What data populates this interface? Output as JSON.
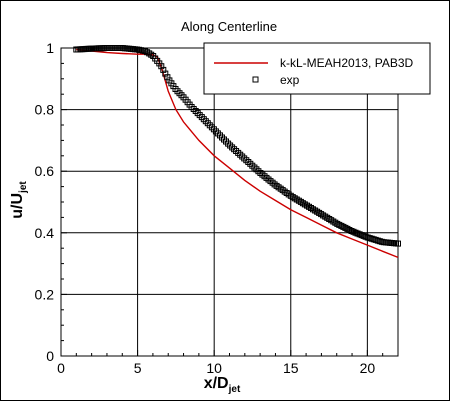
{
  "chart_data": {
    "type": "line",
    "title": "Along Centerline",
    "xlabel": {
      "main": "x/D",
      "sub": "jet"
    },
    "ylabel": {
      "main": "u/U",
      "sub": "jet"
    },
    "xlim": [
      0,
      22
    ],
    "ylim": [
      0,
      1
    ],
    "xticks": [
      0,
      5,
      10,
      15,
      20
    ],
    "yticks": [
      0,
      0.2,
      0.4,
      0.6,
      0.8,
      1
    ],
    "xtick_labels": [
      "0",
      "5",
      "10",
      "15",
      "20"
    ],
    "ytick_labels": [
      "0",
      "0.2",
      "0.4",
      "0.6",
      "0.8",
      "1"
    ],
    "grid": true,
    "legend_position": "top-right",
    "series": [
      {
        "name": "k-kL-MEAH2013, PAB3D",
        "style": "line",
        "color": "#cc0000",
        "x": [
          1,
          2,
          3,
          4,
          5,
          5.5,
          6,
          6.3,
          6.6,
          7,
          7.5,
          8,
          9,
          10,
          11,
          12,
          13,
          14,
          15,
          16,
          17,
          18,
          19,
          20,
          21,
          22
        ],
        "y": [
          0.995,
          0.99,
          0.985,
          0.982,
          0.98,
          0.98,
          0.978,
          0.97,
          0.93,
          0.86,
          0.8,
          0.76,
          0.7,
          0.65,
          0.61,
          0.57,
          0.535,
          0.505,
          0.475,
          0.45,
          0.425,
          0.4,
          0.38,
          0.36,
          0.34,
          0.32
        ]
      },
      {
        "name": "exp",
        "style": "markers",
        "marker": "square",
        "color": "#000000",
        "x_range": [
          1,
          22
        ],
        "points": 160,
        "anchors_x": [
          1,
          2,
          3,
          4,
          5,
          5.5,
          6,
          6.5,
          7,
          7.5,
          8,
          8.5,
          9,
          9.5,
          10,
          11,
          12,
          13,
          14,
          15,
          16,
          17,
          18,
          19,
          20,
          21,
          22
        ],
        "anchors_y": [
          0.995,
          0.998,
          1.0,
          1.0,
          0.995,
          0.99,
          0.975,
          0.945,
          0.9,
          0.865,
          0.84,
          0.81,
          0.785,
          0.76,
          0.735,
          0.685,
          0.64,
          0.595,
          0.555,
          0.52,
          0.49,
          0.46,
          0.43,
          0.405,
          0.385,
          0.37,
          0.365
        ]
      }
    ]
  }
}
